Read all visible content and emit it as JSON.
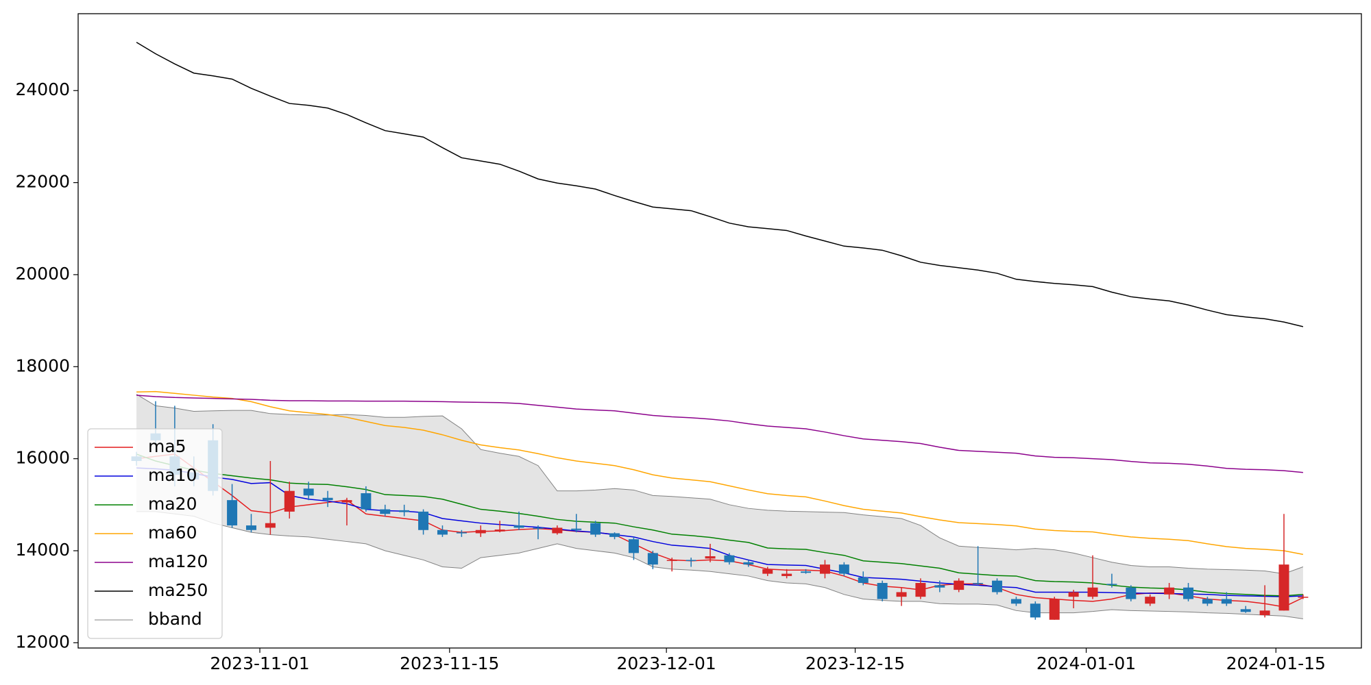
{
  "chart_data": {
    "type": "candlestick",
    "categories": [
      null,
      null,
      null,
      null,
      null,
      null,
      null,
      null,
      null,
      null,
      null,
      null,
      null,
      null,
      null,
      null,
      null,
      null,
      null,
      null,
      null,
      null,
      null,
      null,
      null,
      null,
      null,
      null,
      null,
      null,
      null,
      null,
      null,
      null,
      null,
      null,
      null,
      null,
      null,
      null,
      null,
      null,
      null,
      null,
      null,
      null,
      null,
      null,
      null,
      null,
      null,
      null,
      null,
      null,
      null,
      null,
      null,
      null,
      null,
      null,
      null,
      null
    ],
    "xlim": [
      -3.05,
      64.05
    ],
    "xticks": [
      {
        "value": 6.45,
        "label": "2023-11-01"
      },
      {
        "value": 16.37,
        "label": "2023-11-15"
      },
      {
        "value": 27.71,
        "label": "2023-12-01"
      },
      {
        "value": 37.58,
        "label": "2023-12-15"
      },
      {
        "value": 49.66,
        "label": "2024-01-01"
      },
      {
        "value": 59.58,
        "label": "2024-01-15"
      }
    ],
    "ylim": [
      11886,
      25671
    ],
    "yticks": [
      12000,
      14000,
      16000,
      18000,
      20000,
      22000,
      24000
    ],
    "legend": "lower left",
    "candles": {
      "up_color": "#d62728",
      "down_color": "#1f77b4",
      "open": [
        16050,
        16550,
        16050,
        15700,
        16400,
        15100,
        14550,
        14500,
        14850,
        15350,
        15150,
        15050,
        15250,
        14900,
        14880,
        14850,
        14450,
        14400,
        14380,
        14420,
        14550,
        14500,
        14380,
        14480,
        14600,
        14380,
        14250,
        13950,
        13780,
        13800,
        13830,
        13900,
        13750,
        13500,
        13450,
        13550,
        13500,
        13700,
        13420,
        13300,
        13000,
        13000,
        13250,
        13150,
        13300,
        13350,
        12950,
        12850,
        12500,
        13000,
        13000,
        13280,
        13200,
        12850,
        13050,
        13200,
        12950,
        12950,
        12730,
        12600,
        12700,
        12980
      ],
      "high": [
        16150,
        17250,
        17150,
        16050,
        16750,
        15450,
        14800,
        15950,
        15500,
        15500,
        15300,
        15150,
        15400,
        15000,
        15000,
        14900,
        14550,
        14450,
        14550,
        14650,
        14850,
        14550,
        14550,
        14800,
        14650,
        14400,
        14300,
        14000,
        13850,
        13850,
        14150,
        13950,
        13800,
        13650,
        13600,
        13600,
        13800,
        13750,
        13550,
        13350,
        13200,
        13400,
        13350,
        13400,
        14100,
        13400,
        13000,
        12900,
        13000,
        13150,
        13900,
        13500,
        13250,
        13050,
        13300,
        13300,
        13000,
        13100,
        12800,
        13250,
        14800,
        13050
      ],
      "low": [
        15850,
        16300,
        15400,
        15400,
        15200,
        14500,
        14400,
        14350,
        14700,
        15100,
        14950,
        14550,
        14850,
        14750,
        14750,
        14350,
        14300,
        14300,
        14300,
        14400,
        14450,
        14250,
        14350,
        14400,
        14300,
        14250,
        13800,
        13600,
        13550,
        13650,
        13750,
        13700,
        13650,
        13450,
        13400,
        13500,
        13400,
        13450,
        13250,
        12900,
        12800,
        12950,
        13100,
        13100,
        13250,
        13050,
        12800,
        12500,
        12500,
        12750,
        12950,
        13200,
        12900,
        12800,
        12950,
        12900,
        12800,
        12800,
        12650,
        12550,
        12700,
        12950
      ],
      "close": [
        15950,
        16400,
        15650,
        15550,
        15300,
        14550,
        14450,
        14600,
        15300,
        15200,
        15100,
        15100,
        14900,
        14800,
        14840,
        14450,
        14350,
        14380,
        14450,
        14460,
        14500,
        14480,
        14500,
        14450,
        14350,
        14300,
        13950,
        13700,
        13800,
        13780,
        13880,
        13750,
        13700,
        13600,
        13500,
        13520,
        13700,
        13500,
        13300,
        12950,
        13100,
        13300,
        13200,
        13350,
        13280,
        13100,
        12850,
        12550,
        12950,
        13100,
        13200,
        13260,
        12950,
        13000,
        13200,
        12950,
        12850,
        12850,
        12670,
        12700,
        13700,
        13000
      ]
    },
    "series": [
      {
        "name": "ma5",
        "color": "#e41a1c",
        "values": [
          16000,
          16050,
          16100,
          15800,
          15500,
          15200,
          14870,
          14820,
          14950,
          15000,
          15050,
          15100,
          14800,
          14750,
          14700,
          14650,
          14450,
          14400,
          14420,
          14430,
          14460,
          14480,
          14460,
          14420,
          14400,
          14350,
          14150,
          13950,
          13800,
          13780,
          13800,
          13780,
          13700,
          13600,
          13580,
          13580,
          13560,
          13450,
          13300,
          13230,
          13200,
          13150,
          13250,
          13280,
          13280,
          13200,
          13050,
          12980,
          12950,
          12920,
          12900,
          12950,
          13050,
          13080,
          13080,
          13020,
          12950,
          12920,
          12900,
          12850,
          12780,
          12980
        ]
      },
      {
        "name": "ma10",
        "color": "#0000dd",
        "values": [
          15800,
          15780,
          15750,
          15680,
          15600,
          15550,
          15460,
          15480,
          15200,
          15120,
          15080,
          15020,
          14900,
          14870,
          14860,
          14830,
          14700,
          14650,
          14600,
          14570,
          14540,
          14510,
          14470,
          14430,
          14400,
          14350,
          14300,
          14200,
          14120,
          14090,
          14050,
          13900,
          13800,
          13700,
          13690,
          13680,
          13600,
          13520,
          13420,
          13400,
          13380,
          13340,
          13300,
          13270,
          13250,
          13220,
          13200,
          13100,
          13100,
          13100,
          13100,
          13090,
          13080,
          13075,
          13070,
          13060,
          13050,
          13030,
          13020,
          13010,
          13000,
          13020
        ]
      },
      {
        "name": "ma20",
        "color": "#008000",
        "values": [
          16100,
          15950,
          15850,
          15750,
          15680,
          15630,
          15580,
          15540,
          15470,
          15450,
          15440,
          15390,
          15330,
          15220,
          15200,
          15180,
          15120,
          15010,
          14900,
          14860,
          14810,
          14750,
          14680,
          14640,
          14620,
          14600,
          14520,
          14450,
          14360,
          14330,
          14290,
          14230,
          14180,
          14060,
          14040,
          14030,
          13960,
          13900,
          13780,
          13750,
          13720,
          13670,
          13620,
          13520,
          13490,
          13460,
          13450,
          13350,
          13330,
          13320,
          13300,
          13250,
          13210,
          13190,
          13180,
          13150,
          13100,
          13070,
          13050,
          13030,
          13020,
          13050
        ]
      },
      {
        "name": "ma60",
        "color": "#ffa500",
        "values": [
          17450,
          17460,
          17420,
          17380,
          17340,
          17310,
          17240,
          17130,
          17040,
          17000,
          16960,
          16900,
          16810,
          16720,
          16680,
          16620,
          16520,
          16400,
          16300,
          16240,
          16190,
          16110,
          16020,
          15950,
          15900,
          15850,
          15760,
          15650,
          15580,
          15540,
          15500,
          15410,
          15320,
          15240,
          15200,
          15170,
          15080,
          14980,
          14900,
          14860,
          14820,
          14740,
          14670,
          14610,
          14590,
          14570,
          14540,
          14470,
          14440,
          14420,
          14410,
          14350,
          14300,
          14270,
          14250,
          14220,
          14150,
          14090,
          14050,
          14030,
          14000,
          13920
        ]
      },
      {
        "name": "ma120",
        "color": "#8b008b",
        "values": [
          17380,
          17350,
          17330,
          17320,
          17310,
          17300,
          17290,
          17270,
          17260,
          17260,
          17255,
          17255,
          17250,
          17250,
          17250,
          17245,
          17240,
          17230,
          17225,
          17220,
          17200,
          17160,
          17120,
          17080,
          17060,
          17040,
          16990,
          16940,
          16910,
          16890,
          16860,
          16820,
          16760,
          16710,
          16680,
          16650,
          16580,
          16500,
          16430,
          16400,
          16370,
          16330,
          16250,
          16180,
          16160,
          16140,
          16120,
          16060,
          16030,
          16020,
          16000,
          15980,
          15940,
          15910,
          15900,
          15880,
          15840,
          15790,
          15770,
          15760,
          15740,
          15700
        ]
      },
      {
        "name": "ma250",
        "color": "#000000",
        "values": [
          25050,
          24800,
          24580,
          24380,
          24320,
          24250,
          24050,
          23880,
          23720,
          23680,
          23620,
          23480,
          23300,
          23130,
          23060,
          22990,
          22760,
          22540,
          22470,
          22400,
          22250,
          22080,
          21990,
          21930,
          21860,
          21720,
          21590,
          21470,
          21430,
          21390,
          21260,
          21120,
          21040,
          21000,
          20960,
          20840,
          20730,
          20620,
          20580,
          20530,
          20410,
          20270,
          20200,
          20150,
          20100,
          20030,
          19900,
          19850,
          19810,
          19780,
          19740,
          19620,
          19520,
          19470,
          19430,
          19340,
          19230,
          19130,
          19080,
          19040,
          18970,
          18870
        ]
      },
      {
        "name": "bband",
        "color": "#808080",
        "fill": "#e4e4e4",
        "upper": [
          17400,
          17150,
          17100,
          17030,
          17040,
          17050,
          17050,
          16980,
          16960,
          16950,
          16950,
          16960,
          16940,
          16900,
          16900,
          16920,
          16930,
          16650,
          16200,
          16120,
          16050,
          15850,
          15300,
          15300,
          15320,
          15350,
          15320,
          15200,
          15180,
          15150,
          15120,
          15000,
          14920,
          14880,
          14860,
          14850,
          14840,
          14830,
          14780,
          14740,
          14700,
          14550,
          14280,
          14100,
          14070,
          14050,
          14020,
          14050,
          14020,
          13950,
          13850,
          13750,
          13680,
          13650,
          13650,
          13620,
          13600,
          13590,
          13580,
          13560,
          13500,
          13650
        ],
        "lower": [
          14850,
          14850,
          14800,
          14750,
          14600,
          14500,
          14400,
          14350,
          14320,
          14300,
          14250,
          14200,
          14150,
          14000,
          13900,
          13800,
          13650,
          13620,
          13850,
          13900,
          13950,
          14050,
          14150,
          14050,
          14000,
          13950,
          13850,
          13650,
          13600,
          13580,
          13550,
          13500,
          13450,
          13350,
          13300,
          13280,
          13200,
          13050,
          12950,
          12920,
          12900,
          12900,
          12850,
          12840,
          12840,
          12820,
          12700,
          12650,
          12650,
          12650,
          12680,
          12720,
          12700,
          12690,
          12680,
          12670,
          12650,
          12640,
          12620,
          12600,
          12580,
          12520
        ]
      }
    ]
  }
}
